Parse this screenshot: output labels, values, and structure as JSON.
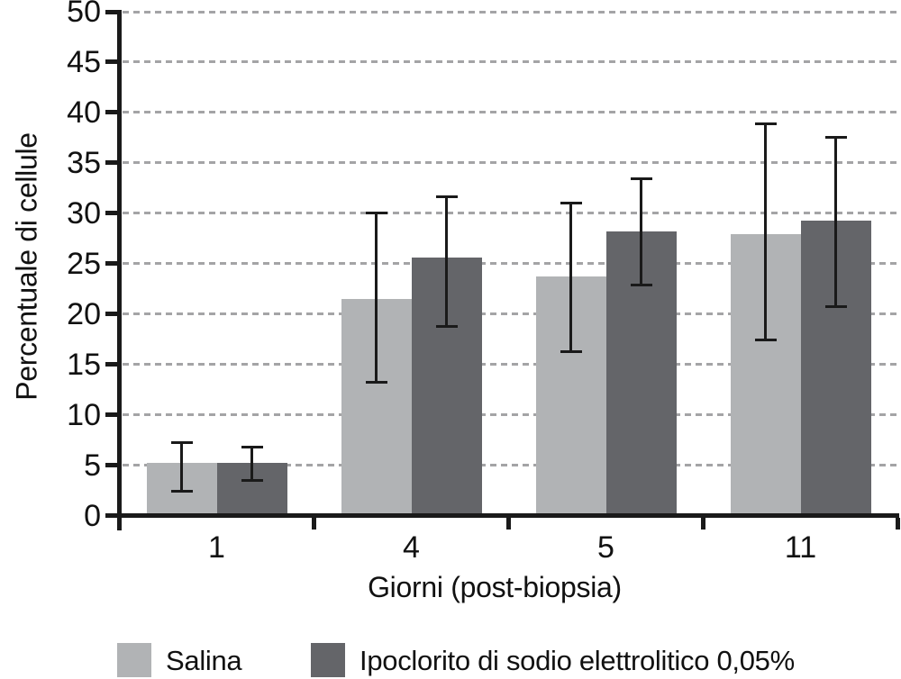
{
  "chart_data": {
    "type": "bar",
    "title": "",
    "xlabel": "Giorni (post-biopsia)",
    "ylabel": "Percentuale di cellule",
    "categories": [
      "1",
      "4",
      "5",
      "11"
    ],
    "ylim": [
      0,
      50
    ],
    "ytick_step": 5,
    "yticks": [
      0,
      5,
      10,
      15,
      20,
      25,
      30,
      35,
      40,
      45,
      50
    ],
    "grid": "horizontal-dashed",
    "gridline_color": "#a4a4a6",
    "axis_color": "#1a1a1a",
    "legend_position": "bottom",
    "series": [
      {
        "name": "Salina",
        "color": "#b1b3b5",
        "values": [
          5.2,
          21.5,
          23.7,
          27.9
        ],
        "error_low": [
          2.4,
          13.2,
          16.3,
          17.4
        ],
        "error_high": [
          7.2,
          30.0,
          31.0,
          38.9
        ]
      },
      {
        "name": "Ipoclorito di sodio elettrolitico 0,05%",
        "color": "#646569",
        "values": [
          5.2,
          25.6,
          28.2,
          29.3
        ],
        "error_low": [
          3.5,
          18.8,
          22.9,
          20.7
        ],
        "error_high": [
          6.8,
          31.6,
          33.4,
          37.5
        ]
      }
    ]
  }
}
